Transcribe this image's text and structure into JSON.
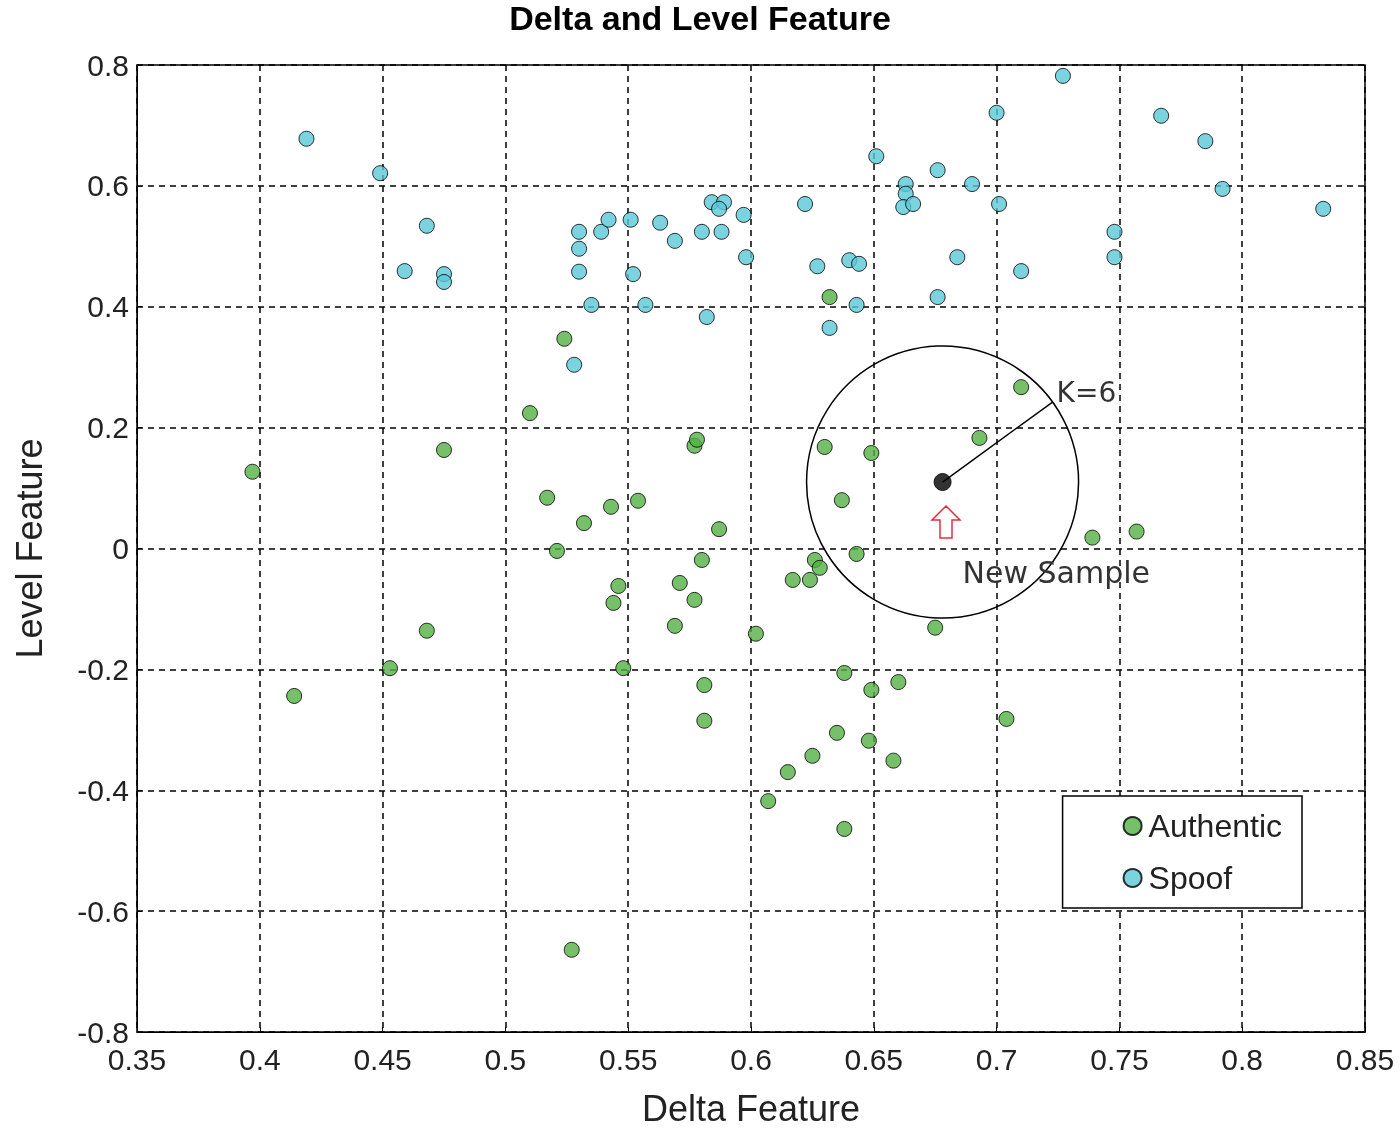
{
  "chart_data": {
    "type": "scatter",
    "title": "Delta and Level Feature",
    "xlabel": "Delta Feature",
    "ylabel": "Level Feature",
    "xlim": [
      0.35,
      0.85
    ],
    "xticks": [
      0.35,
      0.4,
      0.45,
      0.5,
      0.55,
      0.6,
      0.65,
      0.7,
      0.75,
      0.8,
      0.85
    ],
    "ylim": [
      -0.8,
      0.8
    ],
    "yticks": [
      -0.8,
      -0.6,
      -0.4,
      -0.2,
      0,
      0.2,
      0.4,
      0.6,
      0.8
    ],
    "grid": true,
    "legend": "bottom right",
    "marker": "circle",
    "annotations": [
      {
        "text": "K=6",
        "x": 0.678,
        "y": 0.11
      },
      {
        "text": "New Sample",
        "x": 0.678,
        "y": 0.11
      }
    ],
    "series": [
      {
        "name": "Authentic",
        "color": "#52b043",
        "x": [
          0.397,
          0.414,
          0.453,
          0.468,
          0.475,
          0.51,
          0.517,
          0.521,
          0.524,
          0.532,
          0.527,
          0.543,
          0.544,
          0.546,
          0.548,
          0.554,
          0.569,
          0.571,
          0.577,
          0.577,
          0.578,
          0.58,
          0.581,
          0.581,
          0.587,
          0.602,
          0.607,
          0.615,
          0.617,
          0.624,
          0.626,
          0.628,
          0.625,
          0.63,
          0.632,
          0.635,
          0.637,
          0.638,
          0.638,
          0.643,
          0.648,
          0.649,
          0.649,
          0.658,
          0.66,
          0.675,
          0.693,
          0.71,
          0.704,
          0.739,
          0.757
        ],
        "values": [
          0.127,
          -0.244,
          -0.198,
          -0.136,
          0.163,
          0.224,
          0.084,
          -0.004,
          0.347,
          0.042,
          -0.664,
          0.069,
          -0.09,
          -0.062,
          -0.198,
          0.079,
          -0.128,
          -0.057,
          -0.085,
          0.17,
          0.18,
          -0.019,
          -0.226,
          -0.285,
          0.032,
          -0.141,
          -0.418,
          -0.37,
          -0.052,
          -0.052,
          -0.019,
          -0.032,
          -0.343,
          0.168,
          0.416,
          -0.305,
          0.08,
          -0.206,
          -0.464,
          -0.009,
          -0.318,
          -0.234,
          0.158,
          -0.351,
          -0.221,
          -0.131,
          0.183,
          0.267,
          -0.282,
          0.018,
          0.028
        ]
      },
      {
        "name": "Spoof",
        "color": "#5bc8d8",
        "x": [
          0.419,
          0.449,
          0.468,
          0.459,
          0.475,
          0.475,
          0.53,
          0.53,
          0.53,
          0.539,
          0.542,
          0.535,
          0.528,
          0.551,
          0.552,
          0.557,
          0.563,
          0.569,
          0.58,
          0.582,
          0.584,
          0.589,
          0.587,
          0.588,
          0.597,
          0.598,
          0.622,
          0.627,
          0.632,
          0.64,
          0.644,
          0.643,
          0.651,
          0.663,
          0.663,
          0.662,
          0.666,
          0.676,
          0.676,
          0.684,
          0.69,
          0.7,
          0.701,
          0.71,
          0.727,
          0.748,
          0.748,
          0.767,
          0.785,
          0.792,
          0.833
        ],
        "values": [
          0.678,
          0.621,
          0.534,
          0.459,
          0.454,
          0.441,
          0.524,
          0.496,
          0.458,
          0.524,
          0.544,
          0.403,
          0.304,
          0.544,
          0.454,
          0.403,
          0.539,
          0.509,
          0.524,
          0.383,
          0.573,
          0.573,
          0.562,
          0.524,
          0.552,
          0.482,
          0.57,
          0.467,
          0.365,
          0.477,
          0.471,
          0.403,
          0.649,
          0.603,
          0.587,
          0.565,
          0.57,
          0.626,
          0.416,
          0.482,
          0.603,
          0.721,
          0.57,
          0.459,
          0.782,
          0.524,
          0.482,
          0.716,
          0.674,
          0.595,
          0.562
        ]
      },
      {
        "color": "#000000",
        "x": [
          0.678
        ],
        "values": [
          0.11
        ]
      }
    ]
  }
}
